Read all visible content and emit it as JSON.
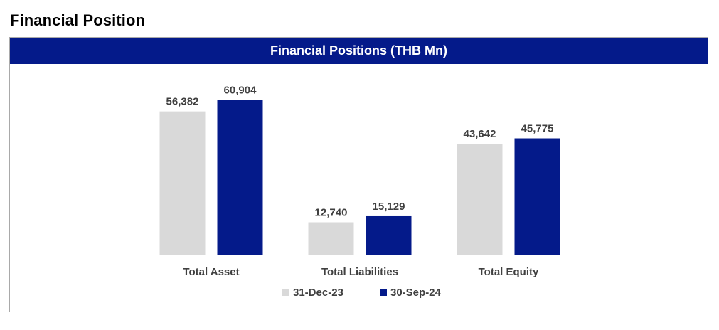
{
  "page_title": "Financial Position",
  "chart_data": {
    "type": "bar",
    "title": "Financial Positions (THB Mn)",
    "categories": [
      "Total Asset",
      "Total Liabilities",
      "Total Equity"
    ],
    "series": [
      {
        "name": "31-Dec-23",
        "values": [
          56382,
          12740,
          43642
        ],
        "labels": [
          "56,382",
          "12,740",
          "43,642"
        ],
        "color": "#d9d9d9"
      },
      {
        "name": "30-Sep-24",
        "values": [
          60904,
          15129,
          45775
        ],
        "labels": [
          "60,904",
          "15,129",
          "45,775"
        ],
        "color": "#041a8a"
      }
    ],
    "ylim": [
      0,
      70000
    ],
    "grid": false,
    "legend": "bottom-center",
    "xlabel": "",
    "ylabel": ""
  }
}
